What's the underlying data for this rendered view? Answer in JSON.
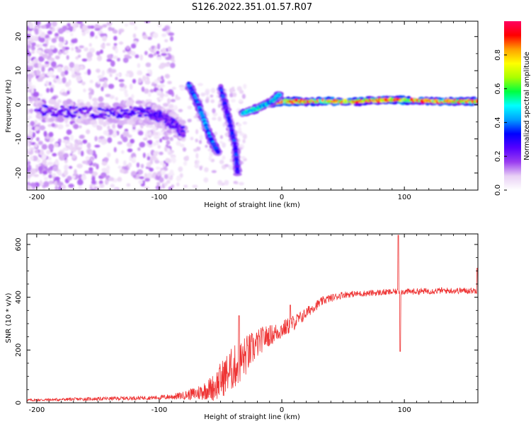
{
  "figure": {
    "title": "S126.2022.351.01.57.R07"
  },
  "chart_data": [
    {
      "type": "heatmap",
      "name": "spectrogram",
      "xlabel": "Height of straight line (km)",
      "ylabel": "Frequency (Hz)",
      "xlim": [
        -208,
        160
      ],
      "ylim": [
        -25,
        24.5
      ],
      "xticks": [
        -200,
        -100,
        0,
        100
      ],
      "yticks": [
        -20,
        -10,
        0,
        10,
        20
      ],
      "grid": false,
      "colorbar": {
        "label": "Normalized spectral amplitude",
        "range": [
          0,
          1
        ],
        "ticks": [
          0.0,
          0.2,
          0.4,
          0.6,
          0.8
        ],
        "tick_labels": [
          "0.0",
          "0.2",
          "0.4",
          "0.6",
          "0.8"
        ],
        "colormap": [
          "#ffffff",
          "#e8d0f5",
          "#9a3cf0",
          "#5500ff",
          "#0000ff",
          "#00a0ff",
          "#00ffff",
          "#00ff40",
          "#aaff00",
          "#ffff00",
          "#ffa000",
          "#ff0000",
          "#ff0060"
        ]
      },
      "ridges": [
        {
          "description": "main carrier line",
          "points": [
            [
              -10,
              0.5
            ],
            [
              0,
              1.0
            ],
            [
              20,
              1.0
            ],
            [
              60,
              1.0
            ],
            [
              90,
              1.5
            ],
            [
              130,
              1.0
            ],
            [
              160,
              1.0
            ]
          ],
          "amplitude": 0.85
        },
        {
          "description": "noisy band",
          "points": [
            [
              -200,
              -1.5
            ],
            [
              -150,
              -2.5
            ],
            [
              -110,
              -2.0
            ],
            [
              -95,
              -4.0
            ],
            [
              -80,
              -8.0
            ]
          ],
          "amplitude": 0.25
        },
        {
          "description": "descending branch 1",
          "points": [
            [
              -76,
              6
            ],
            [
              -68,
              0
            ],
            [
              -58,
              -10
            ],
            [
              -52,
              -14
            ]
          ],
          "amplitude": 0.4
        },
        {
          "description": "descending branch 2",
          "points": [
            [
              -50,
              5
            ],
            [
              -44,
              -3
            ],
            [
              -38,
              -12
            ],
            [
              -36,
              -20
            ]
          ],
          "amplitude": 0.35
        },
        {
          "description": "rising segment",
          "points": [
            [
              -32,
              -2.5
            ],
            [
              -20,
              -1
            ],
            [
              -8,
              1
            ],
            [
              -2,
              3
            ]
          ],
          "amplitude": 0.5
        }
      ]
    },
    {
      "type": "line",
      "name": "snr",
      "xlabel": "Height of straight line (km)",
      "ylabel": "SNR (10 * v/v)",
      "xlim": [
        -208,
        160
      ],
      "ylim": [
        0,
        640
      ],
      "xticks": [
        -200,
        -100,
        0,
        100
      ],
      "yticks": [
        0,
        200,
        400,
        600
      ],
      "grid": false,
      "line_color": "#ee3333",
      "trend": {
        "x": [
          -208,
          -150,
          -100,
          -85,
          -70,
          -55,
          -45,
          -35,
          -25,
          -15,
          -5,
          5,
          15,
          25,
          35,
          50,
          70,
          90,
          110,
          130,
          160
        ],
        "y": [
          10,
          15,
          20,
          25,
          35,
          60,
          110,
          150,
          200,
          245,
          265,
          290,
          320,
          360,
          390,
          410,
          415,
          420,
          422,
          425,
          425
        ]
      },
      "noise": {
        "x": [
          -208,
          -100,
          -80,
          -60,
          -50,
          -40,
          -30,
          -20,
          -10,
          0,
          10,
          20,
          40,
          60,
          160
        ],
        "amplitude": [
          5,
          8,
          15,
          40,
          70,
          85,
          80,
          55,
          40,
          35,
          30,
          22,
          15,
          12,
          12
        ]
      },
      "spikes": [
        {
          "x": -35,
          "y": 330
        },
        {
          "x": 7,
          "y": 370
        },
        {
          "x": 95,
          "y": 635
        },
        {
          "x": 96.5,
          "y": 195
        },
        {
          "x": 159.5,
          "y": 510
        }
      ]
    }
  ]
}
